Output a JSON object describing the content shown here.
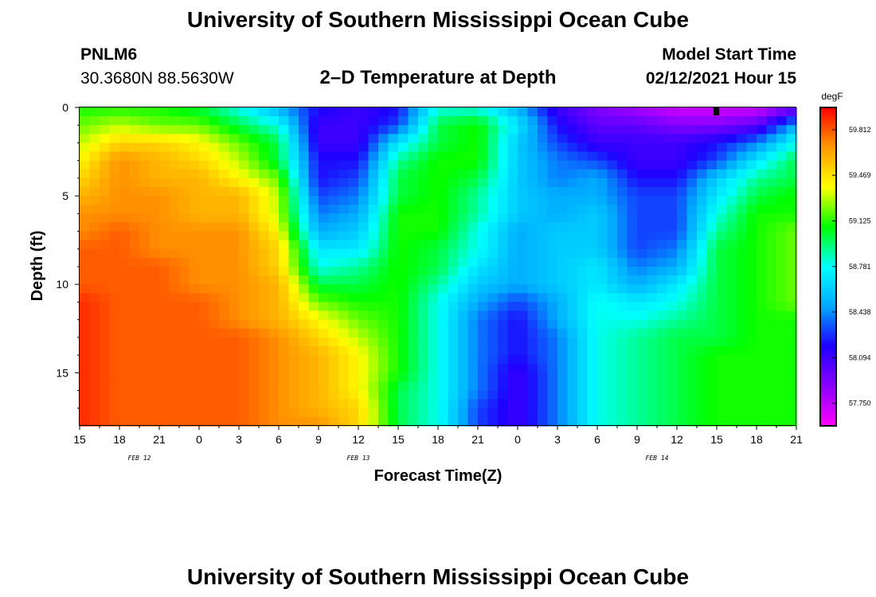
{
  "header": {
    "title_top": "University of Southern Mississippi Ocean Cube",
    "station_id": "PNLM6",
    "coordinates": "30.3680N 88.5630W",
    "plot_title": "2–D Temperature at Depth",
    "model_label": "Model Start Time",
    "model_time": "02/12/2021 Hour 15"
  },
  "footer": {
    "title_bottom": "University of Southern Mississippi Ocean Cube"
  },
  "colors": {
    "palette": [
      "#ff00ff",
      "#8a00ff",
      "#1e00ff",
      "#00a8ff",
      "#00ffff",
      "#00ff00",
      "#ffff00",
      "#ff9a00",
      "#ff0000"
    ]
  },
  "chart_data": {
    "type": "heatmap",
    "title": "2–D Temperature at Depth",
    "xlabel": "Forecast Time(Z)",
    "ylabel": "Depth (ft)",
    "x_tick_labels": [
      "15",
      "18",
      "21",
      "0",
      "3",
      "6",
      "9",
      "12",
      "15",
      "18",
      "21",
      "0",
      "3",
      "6",
      "9",
      "12",
      "15",
      "18",
      "21"
    ],
    "date_labels": [
      "FEB 12",
      "FEB 13",
      "FEB 14"
    ],
    "y_tick_labels": [
      "0",
      "5",
      "10",
      "15"
    ],
    "ylim": [
      0,
      18
    ],
    "y_inverted": true,
    "colorbar": {
      "unit": "degF",
      "tick_labels": [
        "59.812",
        "59.469",
        "59.125",
        "58.781",
        "58.438",
        "58.094",
        "57.750"
      ],
      "range": [
        57.58,
        59.98
      ]
    },
    "grid": false,
    "depths_ft": [
      0,
      1,
      2,
      3,
      4,
      5,
      6,
      7,
      8,
      9,
      10,
      11,
      12,
      13,
      14,
      15,
      16,
      17,
      18
    ],
    "times": [
      "15Z",
      "18Z",
      "21Z",
      "0Z",
      "3Z",
      "6Z",
      "9Z",
      "12Z",
      "15Z",
      "18Z",
      "21Z",
      "0Z",
      "3Z",
      "6Z",
      "9Z",
      "12Z",
      "15Z",
      "18Z",
      "21Z"
    ],
    "values": [
      [
        59.1,
        59.1,
        59.1,
        59.0,
        58.8,
        58.5,
        58.2,
        58.1,
        58.2,
        58.8,
        58.8,
        58.5,
        58.1,
        57.9,
        57.8,
        57.7,
        57.7,
        57.7,
        57.9
      ],
      [
        59.2,
        59.3,
        59.2,
        59.2,
        59.0,
        58.8,
        58.1,
        58.1,
        58.3,
        59.0,
        59.1,
        58.7,
        58.2,
        58.0,
        58.0,
        57.9,
        57.9,
        58.0,
        58.5
      ],
      [
        59.3,
        59.5,
        59.5,
        59.4,
        59.2,
        59.0,
        58.1,
        58.1,
        58.7,
        59.0,
        59.1,
        58.6,
        58.3,
        58.1,
        58.1,
        58.1,
        58.2,
        58.4,
        58.8
      ],
      [
        59.4,
        59.7,
        59.6,
        59.5,
        59.3,
        59.0,
        58.2,
        58.2,
        58.9,
        59.1,
        59.1,
        58.6,
        58.4,
        58.3,
        58.1,
        58.1,
        58.3,
        58.7,
        59.0
      ],
      [
        59.5,
        59.7,
        59.6,
        59.6,
        59.4,
        59.2,
        58.2,
        58.3,
        59.0,
        59.1,
        59.0,
        58.6,
        58.4,
        58.5,
        58.2,
        58.2,
        58.6,
        58.9,
        59.0
      ],
      [
        59.6,
        59.7,
        59.7,
        59.6,
        59.6,
        59.3,
        58.3,
        58.4,
        59.0,
        59.1,
        58.9,
        58.6,
        58.5,
        58.5,
        58.3,
        58.3,
        58.7,
        59.0,
        59.1
      ],
      [
        59.7,
        59.7,
        59.7,
        59.6,
        59.6,
        59.3,
        58.4,
        58.5,
        59.1,
        59.1,
        58.9,
        58.6,
        58.5,
        58.6,
        58.3,
        58.3,
        58.8,
        59.1,
        59.1
      ],
      [
        59.7,
        59.8,
        59.7,
        59.7,
        59.7,
        59.4,
        58.5,
        58.6,
        59.1,
        59.1,
        58.8,
        58.5,
        58.6,
        58.6,
        58.3,
        58.3,
        58.9,
        59.1,
        59.2
      ],
      [
        59.8,
        59.8,
        59.7,
        59.7,
        59.7,
        59.5,
        58.7,
        58.7,
        59.1,
        59.0,
        58.8,
        58.5,
        58.6,
        58.6,
        58.3,
        58.4,
        59.0,
        59.1,
        59.2
      ],
      [
        59.8,
        59.8,
        59.8,
        59.7,
        59.7,
        59.5,
        58.8,
        58.9,
        59.1,
        59.0,
        58.7,
        58.5,
        58.6,
        58.7,
        58.4,
        58.5,
        59.0,
        59.1,
        59.2
      ],
      [
        59.8,
        59.8,
        59.8,
        59.7,
        59.7,
        59.6,
        59.0,
        59.0,
        59.1,
        58.9,
        58.6,
        58.5,
        58.6,
        58.7,
        58.5,
        58.7,
        59.0,
        59.1,
        59.2
      ],
      [
        59.9,
        59.8,
        59.8,
        59.8,
        59.7,
        59.6,
        59.2,
        59.1,
        59.1,
        58.8,
        58.5,
        58.3,
        58.5,
        58.8,
        58.7,
        58.8,
        59.0,
        59.1,
        59.2
      ],
      [
        59.9,
        59.8,
        59.8,
        59.8,
        59.7,
        59.6,
        59.4,
        59.2,
        59.1,
        58.8,
        58.4,
        58.2,
        58.5,
        58.8,
        58.8,
        58.9,
        59.0,
        59.1,
        59.1
      ],
      [
        59.9,
        59.8,
        59.8,
        59.8,
        59.8,
        59.7,
        59.5,
        59.3,
        59.1,
        58.8,
        58.4,
        58.2,
        58.4,
        58.8,
        58.9,
        59.0,
        59.0,
        59.1,
        59.1
      ],
      [
        59.9,
        59.8,
        59.8,
        59.8,
        59.8,
        59.7,
        59.6,
        59.4,
        59.1,
        58.8,
        58.4,
        58.2,
        58.4,
        58.8,
        58.9,
        59.0,
        59.1,
        59.1,
        59.1
      ],
      [
        59.9,
        59.8,
        59.8,
        59.8,
        59.8,
        59.7,
        59.6,
        59.4,
        59.1,
        58.8,
        58.4,
        58.1,
        58.4,
        58.8,
        58.9,
        59.0,
        59.1,
        59.1,
        59.1
      ],
      [
        59.9,
        59.8,
        59.8,
        59.8,
        59.8,
        59.7,
        59.6,
        59.4,
        59.0,
        58.8,
        58.4,
        58.1,
        58.4,
        58.8,
        58.9,
        59.0,
        59.1,
        59.1,
        59.1
      ],
      [
        59.9,
        59.8,
        59.8,
        59.8,
        59.8,
        59.7,
        59.6,
        59.5,
        59.0,
        58.8,
        58.3,
        58.1,
        58.4,
        58.8,
        58.9,
        59.0,
        59.1,
        59.1,
        59.1
      ],
      [
        59.9,
        59.8,
        59.8,
        59.8,
        59.8,
        59.7,
        59.7,
        59.5,
        59.0,
        58.8,
        58.3,
        58.1,
        58.4,
        58.8,
        58.9,
        59.0,
        59.1,
        59.1,
        59.1
      ]
    ]
  }
}
